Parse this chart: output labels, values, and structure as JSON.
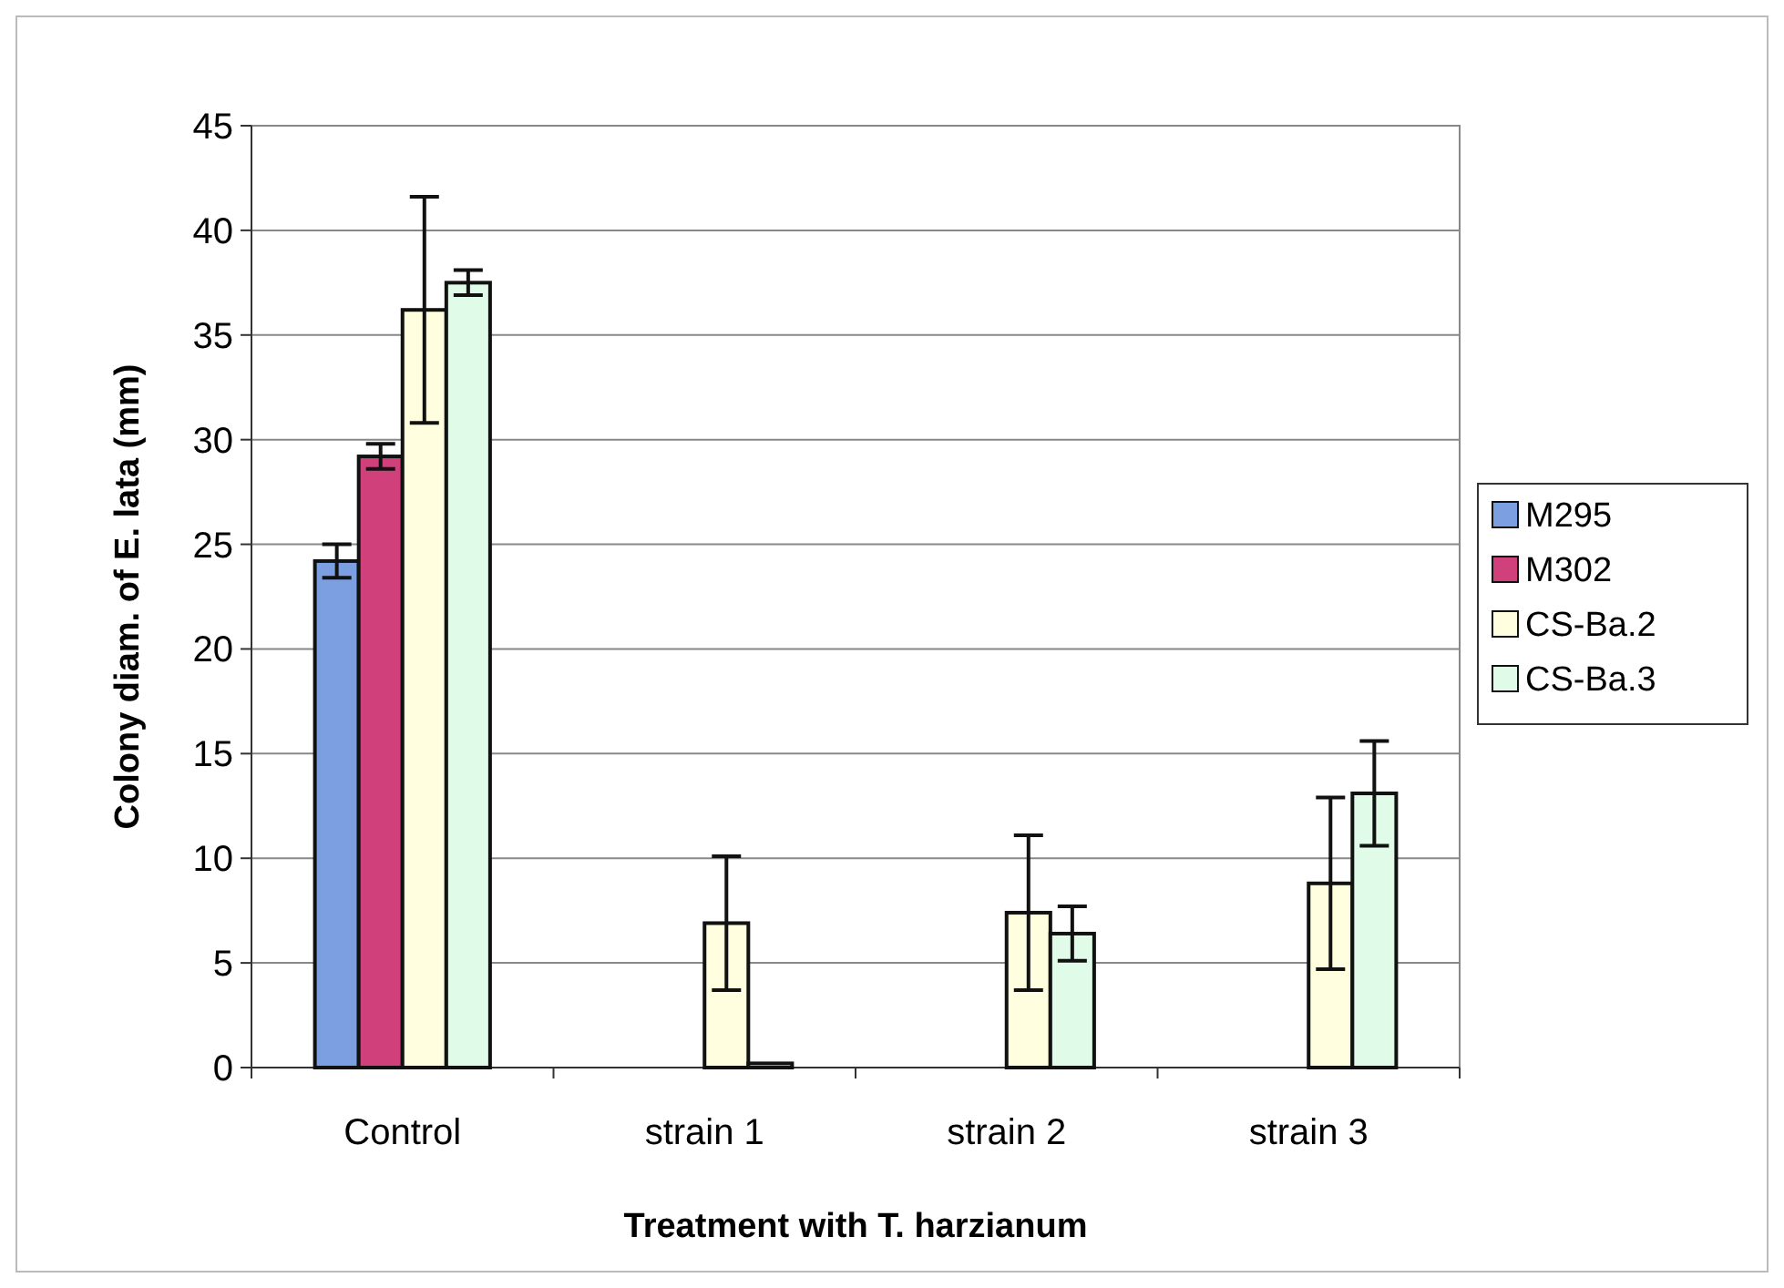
{
  "chart_data": {
    "type": "bar",
    "xlabel": "Treatment with T. harzianum",
    "ylabel": "Colony diam. of E. lata (mm)",
    "categories": [
      "Control",
      "strain 1",
      "strain 2",
      "strain 3"
    ],
    "series": [
      {
        "name": "M295",
        "color": "#7b9fe0",
        "values": [
          24.2,
          0,
          0,
          0
        ],
        "errors": [
          0.8,
          null,
          null,
          null
        ]
      },
      {
        "name": "M302",
        "color": "#d0407a",
        "values": [
          29.2,
          0,
          0,
          0
        ],
        "errors": [
          0.6,
          null,
          null,
          null
        ]
      },
      {
        "name": "CS-Ba.2",
        "color": "#ffffe0",
        "values": [
          36.2,
          6.9,
          7.4,
          8.8
        ],
        "errors": [
          5.4,
          3.2,
          3.7,
          4.1
        ]
      },
      {
        "name": "CS-Ba.3",
        "color": "#e0fbe8",
        "values": [
          37.5,
          0.2,
          6.4,
          13.1
        ],
        "errors": [
          0.6,
          null,
          1.3,
          2.5
        ]
      }
    ],
    "ylim": [
      0,
      45
    ],
    "yticks": [
      0,
      5,
      10,
      15,
      20,
      25,
      30,
      35,
      40,
      45
    ],
    "grid": "y",
    "legend": "right"
  }
}
